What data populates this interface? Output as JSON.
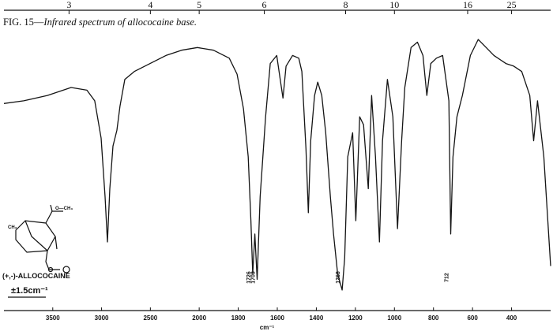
{
  "chart_data": {
    "type": "line",
    "caption_label": "FIG. 15—",
    "title": "Infrared spectrum of allococaine base.",
    "xlabel": "cm⁻¹",
    "compound": "(+,-)-ALLOCOCAINE",
    "scale_note": "±1.5cm⁻¹",
    "structure_labels": [
      "CH₃",
      "O—CH₃"
    ],
    "color": "#151515",
    "xlim": [
      4000,
      200
    ],
    "xticks": [
      3500,
      3000,
      2500,
      2000,
      1800,
      1600,
      1400,
      1200,
      1000,
      800,
      600,
      400
    ],
    "x2ticks": [
      3,
      4,
      5,
      6,
      8,
      10,
      16,
      25
    ],
    "ylim": [
      0,
      100
    ],
    "peak_labels": [
      1726,
      1703,
      1268,
      712
    ],
    "x": [
      4000,
      3798,
      3555,
      3312,
      3150,
      3070,
      3005,
      2964,
      2940,
      2916,
      2883,
      2843,
      2811,
      2762,
      2665,
      2503,
      2341,
      2180,
      2018,
      1927,
      1846,
      1806,
      1773,
      1749,
      1735,
      1726,
      1715,
      1703,
      1688,
      1660,
      1636,
      1603,
      1583,
      1571,
      1555,
      1522,
      1490,
      1474,
      1453,
      1441,
      1429,
      1409,
      1393,
      1372,
      1352,
      1328,
      1312,
      1291,
      1268,
      1255,
      1239,
      1214,
      1198,
      1178,
      1158,
      1134,
      1117,
      1097,
      1077,
      1061,
      1036,
      1008,
      984,
      963,
      947,
      915,
      882,
      854,
      834,
      814,
      785,
      753,
      721,
      712,
      700,
      680,
      652,
      611,
      571,
      530,
      490,
      429,
      389,
      348,
      307,
      287,
      267,
      235,
      200
    ],
    "values": [
      73,
      74,
      76,
      79,
      78,
      74,
      60,
      38,
      21,
      41,
      57,
      63,
      72,
      82,
      85,
      88,
      91,
      93,
      94,
      93,
      90,
      84,
      71,
      53,
      29,
      9,
      24,
      7,
      38,
      68,
      88,
      91,
      81,
      75,
      87,
      91,
      90,
      85,
      56,
      32,
      59,
      76,
      81,
      76,
      62,
      38,
      24,
      9,
      3,
      15,
      53,
      62,
      29,
      68,
      65,
      41,
      76,
      53,
      21,
      59,
      82,
      68,
      26,
      59,
      79,
      94,
      96,
      91,
      76,
      88,
      90,
      91,
      74,
      24,
      53,
      68,
      76,
      91,
      97,
      94,
      91,
      88,
      87,
      85,
      76,
      59,
      74,
      53,
      12
    ]
  }
}
